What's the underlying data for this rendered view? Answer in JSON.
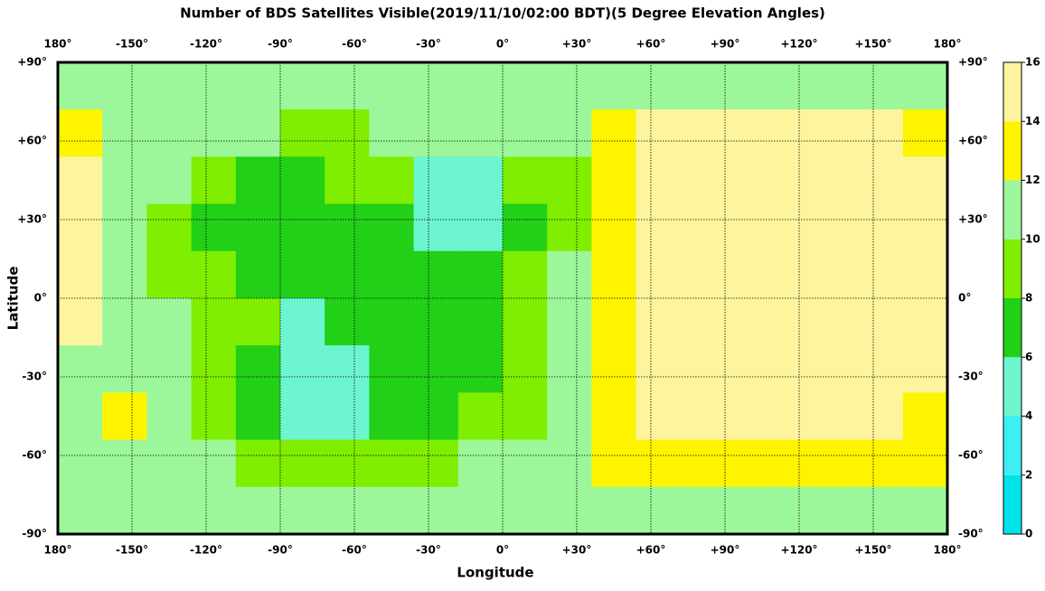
{
  "chart_data": {
    "type": "heatmap",
    "title": "Number of BDS Satellites Visible(2019/11/10/02:00 BDT)(5 Degree Elevation Angles)",
    "x_label": "Longitude",
    "y_label": "Latitude",
    "x": [
      -180,
      -162,
      -144,
      -126,
      -108,
      -90,
      -72,
      -54,
      -36,
      -18,
      0,
      18,
      36,
      54,
      72,
      90,
      108,
      126,
      144,
      162
    ],
    "y": [
      90,
      72,
      54,
      36,
      18,
      0,
      -18,
      -36,
      -54,
      -72
    ],
    "values": [
      [
        11,
        11,
        11,
        11,
        11,
        11,
        11,
        11,
        11,
        11,
        11,
        11,
        11,
        11,
        11,
        11,
        11,
        11,
        11,
        11
      ],
      [
        13,
        11,
        11,
        11,
        11,
        9,
        9,
        11,
        11,
        11,
        11,
        11,
        13,
        15,
        15,
        15,
        15,
        15,
        15,
        13
      ],
      [
        15,
        11,
        11,
        9,
        7,
        7,
        9,
        9,
        5,
        5,
        9,
        9,
        13,
        15,
        15,
        15,
        15,
        15,
        15,
        15
      ],
      [
        15,
        11,
        9,
        7,
        7,
        7,
        7,
        7,
        5,
        5,
        7,
        9,
        13,
        15,
        15,
        15,
        15,
        15,
        15,
        15
      ],
      [
        15,
        11,
        9,
        9,
        7,
        7,
        7,
        7,
        7,
        7,
        9,
        11,
        13,
        15,
        15,
        15,
        15,
        15,
        15,
        15
      ],
      [
        15,
        11,
        11,
        9,
        9,
        5,
        7,
        7,
        7,
        7,
        9,
        11,
        13,
        15,
        15,
        15,
        15,
        15,
        15,
        15
      ],
      [
        11,
        11,
        11,
        9,
        7,
        5,
        5,
        7,
        7,
        7,
        9,
        11,
        13,
        15,
        15,
        15,
        15,
        15,
        15,
        15
      ],
      [
        11,
        13,
        11,
        9,
        7,
        5,
        5,
        7,
        7,
        9,
        9,
        11,
        13,
        15,
        15,
        15,
        15,
        15,
        15,
        13
      ],
      [
        11,
        11,
        11,
        11,
        9,
        9,
        9,
        9,
        9,
        11,
        11,
        11,
        13,
        13,
        13,
        13,
        13,
        13,
        13,
        13
      ],
      [
        11,
        11,
        11,
        11,
        11,
        11,
        11,
        11,
        11,
        11,
        11,
        11,
        11,
        11,
        11,
        11,
        11,
        11,
        11,
        11
      ]
    ],
    "xlim": [
      -180,
      180
    ],
    "ylim": [
      -90,
      90
    ],
    "xticks": [
      {
        "value": -180,
        "label": "180°"
      },
      {
        "value": -150,
        "label": "-150°"
      },
      {
        "value": -120,
        "label": "-120°"
      },
      {
        "value": -90,
        "label": "-90°"
      },
      {
        "value": -60,
        "label": "-60°"
      },
      {
        "value": -30,
        "label": "-30°"
      },
      {
        "value": 0,
        "label": "0°"
      },
      {
        "value": 30,
        "label": "+30°"
      },
      {
        "value": 60,
        "label": "+60°"
      },
      {
        "value": 90,
        "label": "+90°"
      },
      {
        "value": 120,
        "label": "+120°"
      },
      {
        "value": 150,
        "label": "+150°"
      },
      {
        "value": 180,
        "label": "180°"
      }
    ],
    "yticks": [
      {
        "value": -90,
        "label": "-90°"
      },
      {
        "value": -60,
        "label": "-60°"
      },
      {
        "value": -30,
        "label": "-30°"
      },
      {
        "value": 0,
        "label": "0°"
      },
      {
        "value": 30,
        "label": "+30°"
      },
      {
        "value": 60,
        "label": "+60°"
      },
      {
        "value": 90,
        "label": "+90°"
      }
    ],
    "grid": true,
    "colorbar": {
      "lim": [
        0,
        16
      ],
      "ticks": [
        0,
        2,
        4,
        6,
        8,
        10,
        12,
        14,
        16
      ],
      "colors": [
        "#00e3ea",
        "#3deef5",
        "#6cf5cf",
        "#22d018",
        "#80ee00",
        "#9cf79a",
        "#fff400",
        "#fdf49e"
      ]
    }
  }
}
